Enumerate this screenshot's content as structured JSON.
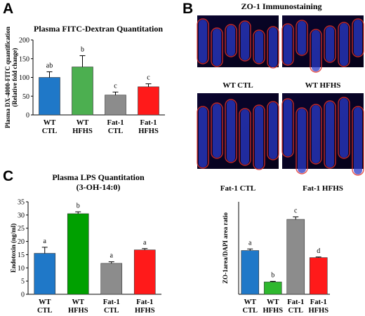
{
  "panels": {
    "A": {
      "letter": "A",
      "chart_data": {
        "type": "bar",
        "title": "Plasma FITC-Dextran  Quantitation",
        "ylabel": [
          "Plasma DX-4000-FITC quantification",
          "(Relative fold change)"
        ],
        "categories": [
          [
            "WT",
            "CTL"
          ],
          [
            "WT",
            "HFHS"
          ],
          [
            "Fat-1",
            "CTL"
          ],
          [
            "Fat-1",
            "HFHS"
          ]
        ],
        "values": [
          100,
          128,
          53,
          75
        ],
        "errors": [
          15,
          30,
          8,
          8
        ],
        "significance": [
          "ab",
          "b",
          "c",
          "c"
        ],
        "colors": [
          "#1f78c8",
          "#4caf50",
          "#8c8c8c",
          "#ff1a1a"
        ],
        "ylim": [
          0,
          200
        ],
        "yticks": [
          0,
          50,
          100,
          150,
          200
        ]
      }
    },
    "B": {
      "letter": "B",
      "title": "ZO-1 Immunostaining",
      "images": [
        {
          "label": "WT CTL",
          "icon": "fluorescence-micrograph"
        },
        {
          "label": "WT HFHS",
          "icon": "fluorescence-micrograph"
        },
        {
          "label": "Fat-1 CTL",
          "icon": "fluorescence-micrograph"
        },
        {
          "label": "Fat-1 HFHS",
          "icon": "fluorescence-micrograph"
        }
      ],
      "chart_data": {
        "type": "bar",
        "title": "",
        "ylabel": "ZO-1area/DAPI area ratio",
        "categories": [
          [
            "WT",
            "CTL"
          ],
          [
            "WT",
            "HFHS"
          ],
          [
            "Fat-1",
            "CTL"
          ],
          [
            "Fat-1",
            "HFHS"
          ]
        ],
        "values": [
          142,
          40,
          243,
          119
        ],
        "errors": [
          5,
          2,
          8,
          2
        ],
        "significance": [
          "a",
          "b",
          "c",
          "d"
        ],
        "colors": [
          "#1f78c8",
          "#2eb82e",
          "#8c8c8c",
          "#ff1a1a"
        ],
        "ylim": [
          0,
          300
        ],
        "yticks": []
      }
    },
    "C": {
      "letter": "C",
      "chart_data": {
        "type": "bar",
        "title": [
          "Plasma LPS Quantitation",
          "(3-OH-14:0)"
        ],
        "ylabel": "Endotoxin (ng/ml)",
        "categories": [
          [
            "WT",
            "CTL"
          ],
          [
            "WT",
            "HFHS"
          ],
          [
            "Fat-1",
            "CTL"
          ],
          [
            "Fat-1",
            "HFHS"
          ]
        ],
        "values": [
          15.5,
          30.5,
          11.7,
          16.8
        ],
        "errors": [
          2.3,
          0.7,
          0.6,
          0.5
        ],
        "significance": [
          "a",
          "b",
          "a",
          "a"
        ],
        "colors": [
          "#1f78c8",
          "#00a000",
          "#8c8c8c",
          "#ff1a1a"
        ],
        "ylim": [
          0,
          35
        ],
        "yticks": [
          0,
          5,
          10,
          15,
          20,
          25,
          30,
          35
        ]
      }
    }
  }
}
